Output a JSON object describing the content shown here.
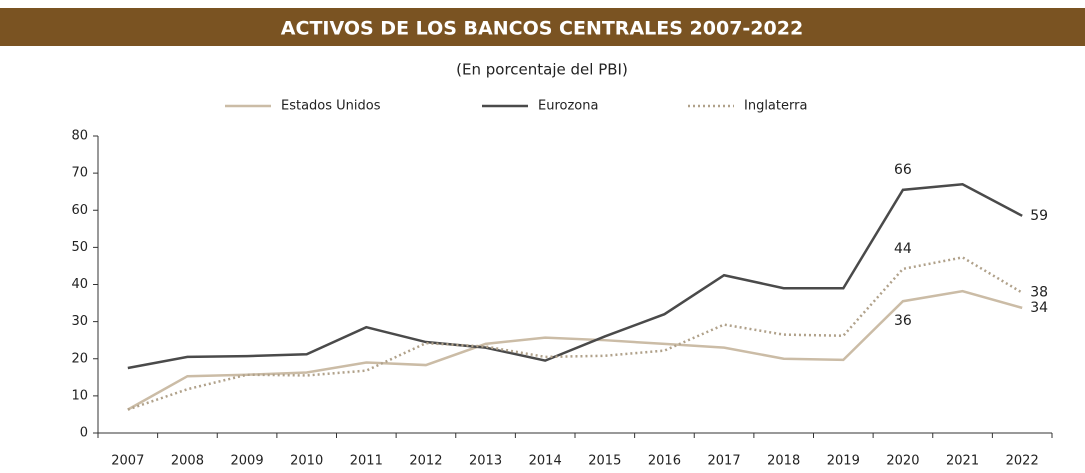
{
  "chart_data": {
    "type": "line",
    "title": "ACTIVOS DE LOS BANCOS CENTRALES 2007-2022",
    "subtitle": "(En porcentaje del PBI)",
    "categories": [
      "2007",
      "2008",
      "2009",
      "2010",
      "2011",
      "2012",
      "2013",
      "2014",
      "2015",
      "2016",
      "2017",
      "2018",
      "2019",
      "2020",
      "2021",
      "2022"
    ],
    "series": [
      {
        "name": "Estados Unidos",
        "color": "#cbbca6",
        "dash": "solid",
        "values": [
          6.3,
          15.3,
          15.7,
          16.3,
          19,
          18.3,
          24,
          25.7,
          25,
          24,
          23,
          20,
          19.7,
          35.5,
          38.2,
          33.7
        ],
        "value_labels": [
          null,
          null,
          null,
          null,
          null,
          null,
          null,
          null,
          null,
          null,
          null,
          null,
          null,
          "36",
          null,
          "34"
        ]
      },
      {
        "name": "Eurozona",
        "color": "#4a4a4a",
        "dash": "solid",
        "values": [
          17.5,
          20.5,
          20.7,
          21.2,
          28.5,
          24.5,
          23,
          19.5,
          26,
          32,
          42.5,
          39,
          39,
          65.5,
          67,
          58.5
        ],
        "value_labels": [
          null,
          null,
          null,
          null,
          null,
          null,
          null,
          null,
          null,
          null,
          null,
          null,
          null,
          "66",
          null,
          "59"
        ]
      },
      {
        "name": "Inglaterra",
        "color": "#b0a18a",
        "dash": "dotted",
        "values": [
          6.3,
          11.8,
          15.7,
          15.5,
          16.8,
          24.2,
          23.3,
          20.5,
          20.8,
          22.2,
          29.2,
          26.5,
          26.2,
          44.2,
          47.3,
          37.8
        ],
        "value_labels": [
          null,
          null,
          null,
          null,
          null,
          null,
          null,
          null,
          null,
          null,
          null,
          null,
          null,
          "44",
          null,
          "38"
        ]
      }
    ],
    "ylim": [
      0,
      80
    ],
    "yticks": [
      0,
      10,
      20,
      30,
      40,
      50,
      60,
      70,
      80
    ],
    "grid": false,
    "legend": "top"
  }
}
